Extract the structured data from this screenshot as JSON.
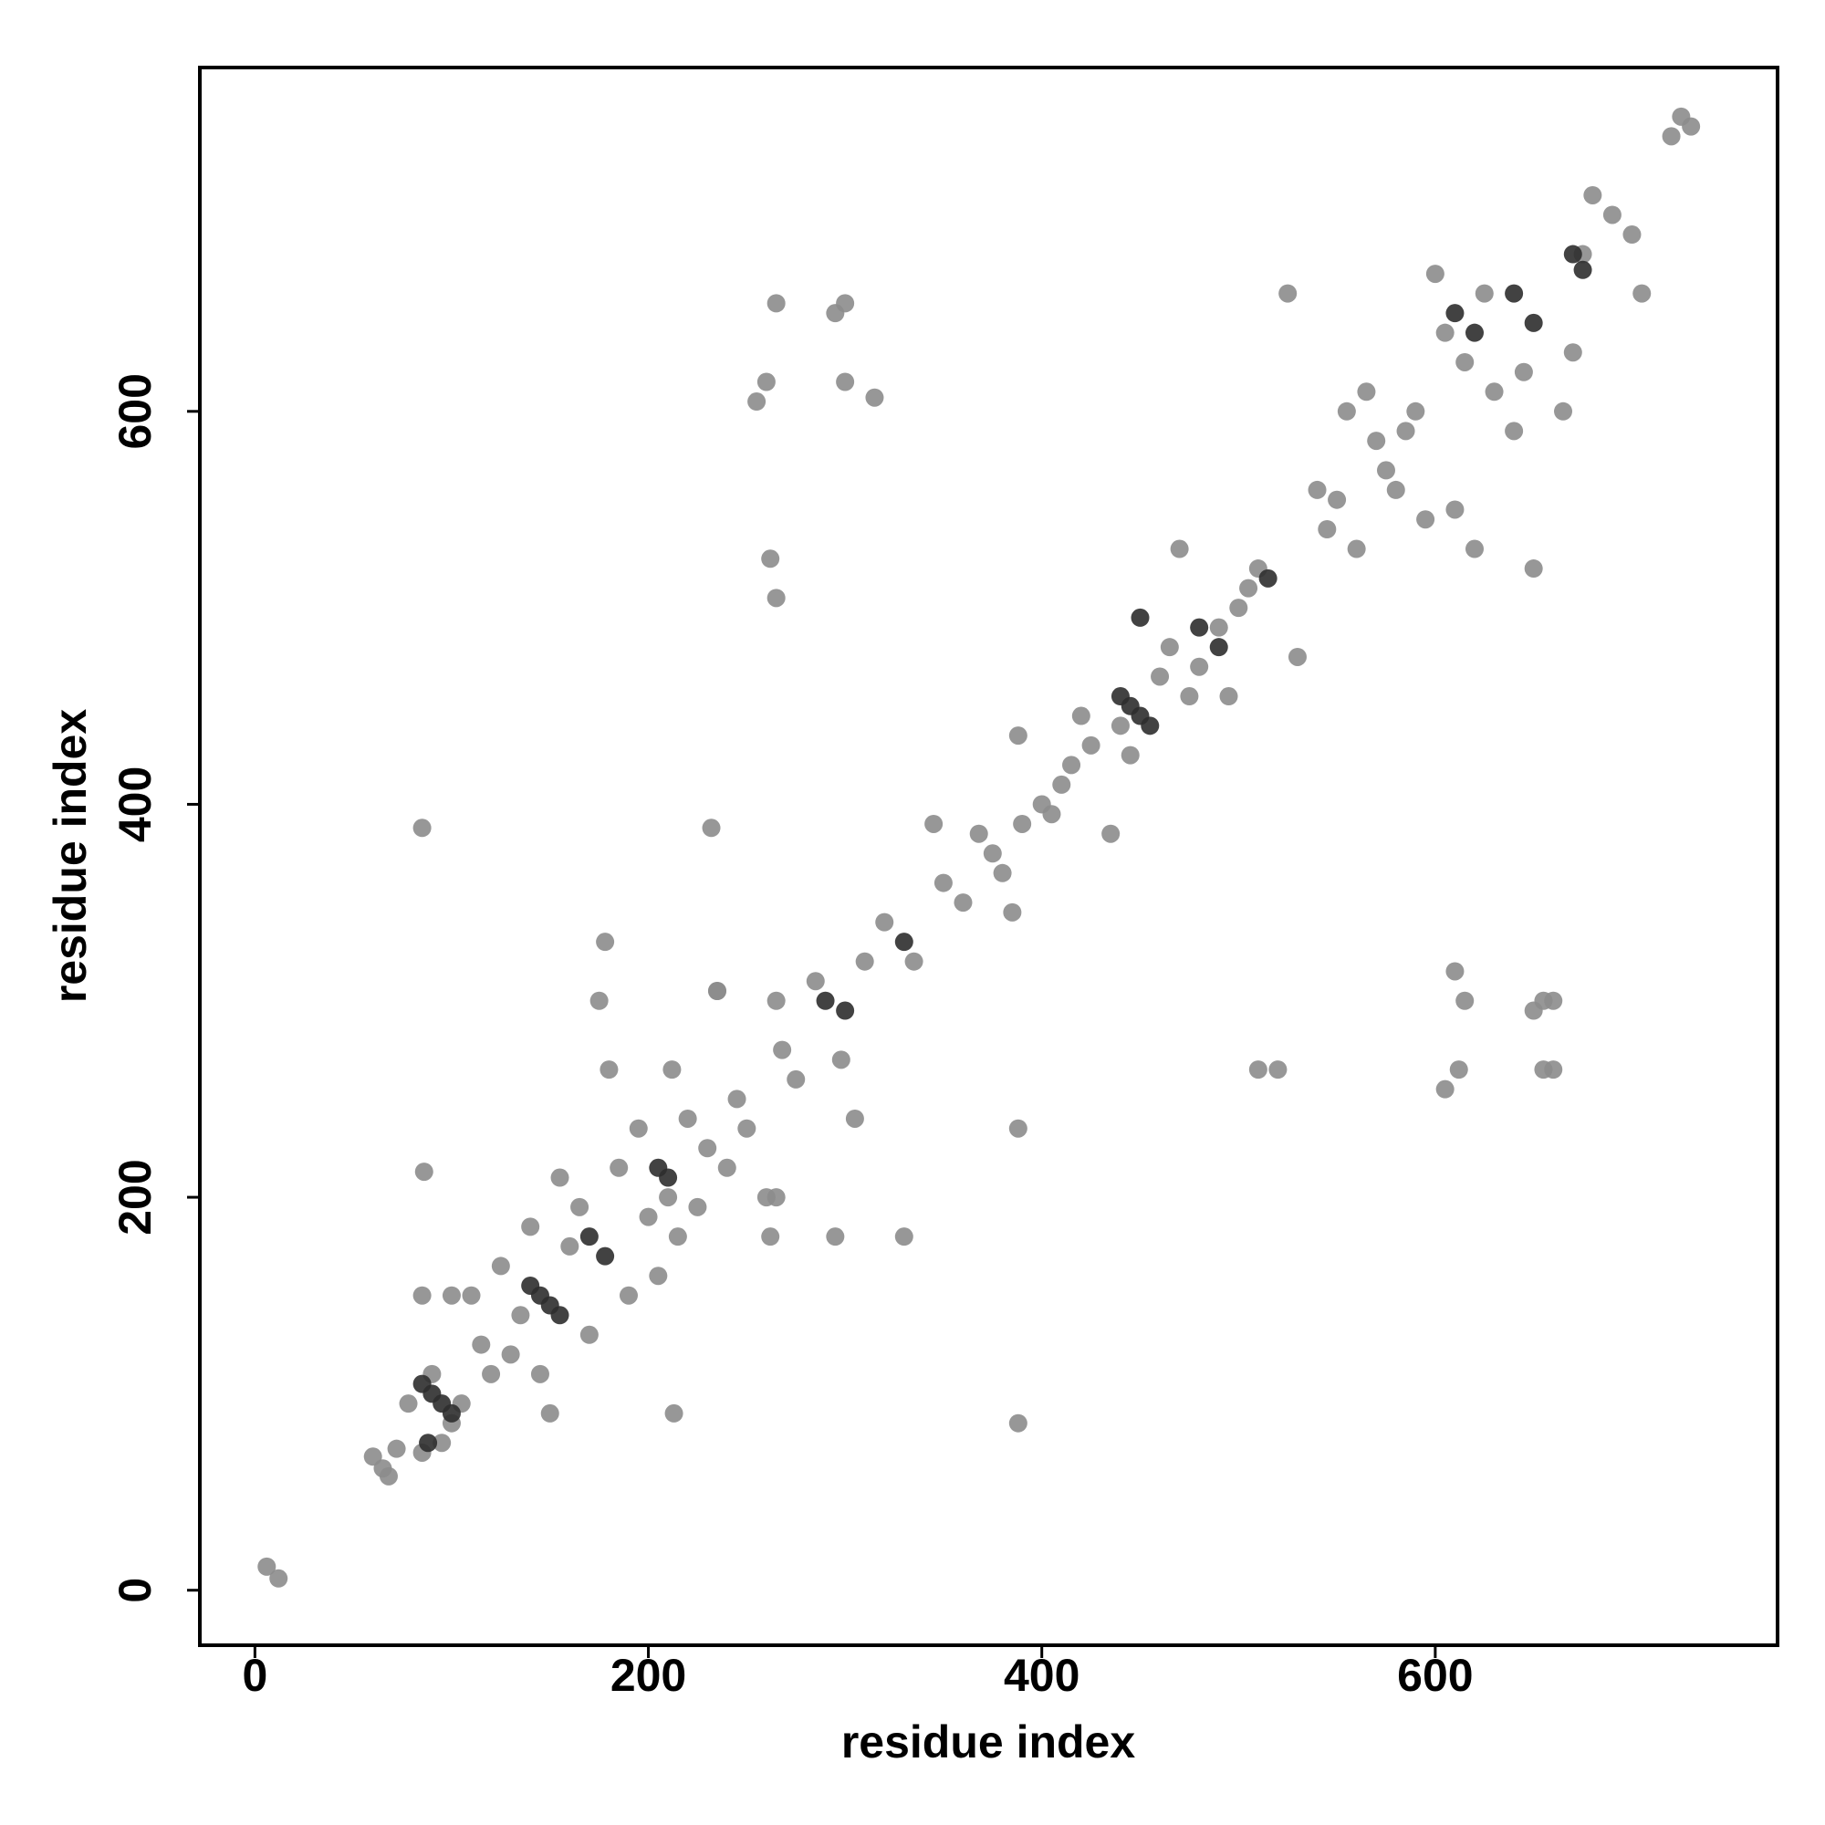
{
  "chart_data": {
    "type": "scatter",
    "xlabel": "residue index",
    "ylabel": "residue index",
    "xlim": [
      -28,
      774
    ],
    "ylim": [
      -28,
      775
    ],
    "xticks": [
      0,
      200,
      400,
      600
    ],
    "yticks": [
      0,
      200,
      400,
      600
    ],
    "series": [
      {
        "color": "#8c8c8c",
        "x": [
          6,
          12,
          60,
          65,
          68,
          72,
          78,
          85,
          90,
          95,
          100,
          105,
          110,
          115,
          120,
          125,
          130,
          135,
          140,
          145,
          150,
          155,
          160,
          165,
          170,
          175,
          180,
          185,
          190,
          195,
          200,
          205,
          210,
          213,
          215,
          220,
          225,
          230,
          235,
          240,
          245,
          250,
          260,
          262,
          265,
          268,
          275,
          285,
          295,
          298,
          305,
          310,
          320,
          330,
          335,
          345,
          350,
          360,
          368,
          375,
          380,
          385,
          388,
          390,
          388,
          388,
          400,
          405,
          410,
          415,
          420,
          425,
          435,
          440,
          445,
          460,
          465,
          470,
          475,
          480,
          490,
          495,
          500,
          505,
          510,
          520,
          525,
          530,
          540,
          545,
          550,
          555,
          560,
          565,
          570,
          575,
          580,
          585,
          590,
          595,
          600,
          605,
          610,
          615,
          620,
          625,
          630,
          640,
          645,
          650,
          655,
          660,
          665,
          670,
          675,
          680,
          690,
          700,
          705,
          720,
          725,
          730,
          255,
          260,
          265,
          262,
          265,
          295,
          300,
          300,
          315,
          610,
          615,
          612,
          605,
          650,
          655,
          660,
          510,
          85,
          232,
          86,
          235,
          178,
          212,
          85,
          100,
          265
        ],
        "values": [
          12,
          6,
          68,
          62,
          58,
          72,
          95,
          70,
          110,
          75,
          85,
          95,
          150,
          125,
          110,
          165,
          120,
          140,
          185,
          110,
          90,
          210,
          175,
          195,
          130,
          300,
          265,
          215,
          150,
          235,
          190,
          160,
          200,
          90,
          180,
          240,
          195,
          225,
          305,
          215,
          250,
          235,
          200,
          180,
          300,
          275,
          260,
          310,
          180,
          270,
          240,
          320,
          340,
          180,
          320,
          390,
          360,
          350,
          385,
          375,
          365,
          345,
          435,
          390,
          85,
          235,
          400,
          395,
          410,
          420,
          445,
          430,
          385,
          440,
          425,
          465,
          480,
          530,
          455,
          470,
          490,
          455,
          500,
          510,
          520,
          265,
          660,
          475,
          560,
          540,
          555,
          600,
          530,
          610,
          585,
          570,
          560,
          590,
          600,
          545,
          670,
          640,
          550,
          625,
          530,
          660,
          610,
          590,
          620,
          520,
          300,
          265,
          600,
          630,
          680,
          710,
          700,
          690,
          660,
          740,
          750,
          745,
          605,
          615,
          655,
          525,
          505,
          650,
          655,
          615,
          607,
          315,
          300,
          265,
          255,
          295,
          265,
          300,
          265,
          388,
          388,
          213,
          305,
          330,
          265,
          150,
          150,
          200
        ]
      },
      {
        "color": "#2e2e2e",
        "x": [
          85,
          90,
          95,
          100,
          88,
          140,
          145,
          150,
          155,
          170,
          178,
          205,
          210,
          290,
          300,
          330,
          445,
          440,
          450,
          455,
          450,
          480,
          490,
          515,
          640,
          650,
          670,
          675,
          610,
          620
        ],
        "values": [
          105,
          100,
          95,
          90,
          75,
          155,
          150,
          145,
          140,
          180,
          170,
          215,
          210,
          300,
          295,
          330,
          450,
          455,
          445,
          440,
          495,
          490,
          480,
          515,
          660,
          645,
          680,
          672,
          650,
          640
        ]
      }
    ]
  }
}
